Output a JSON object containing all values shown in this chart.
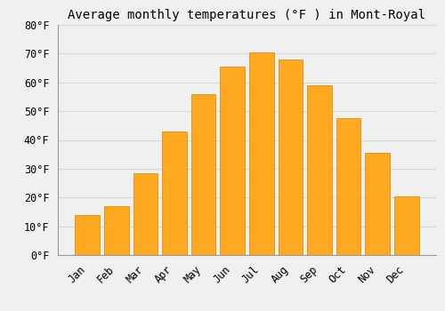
{
  "title": "Average monthly temperatures (°F ) in Mont-Royal",
  "months": [
    "Jan",
    "Feb",
    "Mar",
    "Apr",
    "May",
    "Jun",
    "Jul",
    "Aug",
    "Sep",
    "Oct",
    "Nov",
    "Dec"
  ],
  "values": [
    14,
    17,
    28.5,
    43,
    56,
    65.5,
    70.5,
    68,
    59,
    47.5,
    35.5,
    20.5
  ],
  "bar_color_top": "#FFB830",
  "bar_color_bottom": "#F5A010",
  "bar_color": "#FFA820",
  "bar_edge_color": "#CC8800",
  "ylim": [
    0,
    80
  ],
  "yticks": [
    0,
    10,
    20,
    30,
    40,
    50,
    60,
    70,
    80
  ],
  "ylabel_format": "{0}°F",
  "background_color": "#f0f0f0",
  "plot_bg_color": "#f0f0f0",
  "grid_color": "#d8d8d8",
  "title_fontsize": 10,
  "tick_fontsize": 8.5,
  "font_family": "monospace"
}
